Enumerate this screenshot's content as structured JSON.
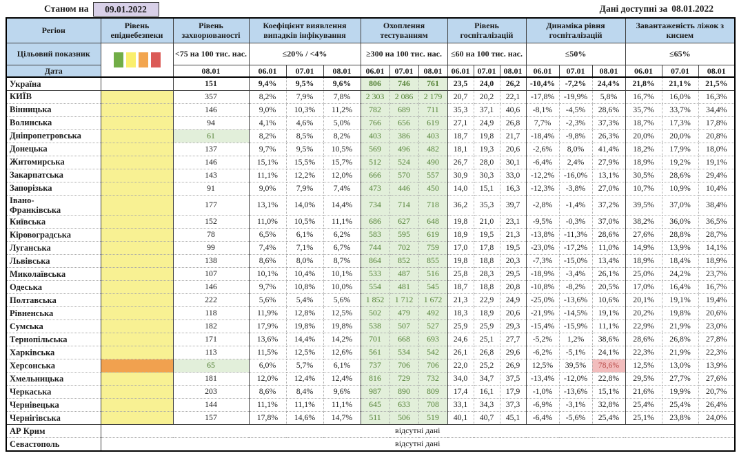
{
  "meta": {
    "as_of_label": "Станом на",
    "as_of_date": "09.01.2022",
    "available_label": "Дані доступні за",
    "available_date": "08.01.2022"
  },
  "header": {
    "region_label": "Регіон",
    "target_label": "Цільовий показник",
    "date_label": "Дата",
    "swatch_colors": [
      "#71AD47",
      "#FAEF6D",
      "#F2A54F",
      "#DB5B57"
    ],
    "groups": [
      {
        "title": "Рівень епіднебезпеки",
        "target": "",
        "dates": []
      },
      {
        "title": "Рівень захворюваності",
        "target": "<75 на 100 тис. нас.",
        "dates": [
          "08.01"
        ]
      },
      {
        "title": "Коефіцієнт виявлення випадків інфікування",
        "target": "≤20% / <4%",
        "dates": [
          "06.01",
          "07.01",
          "08.01"
        ]
      },
      {
        "title": "Охоплення тестуванням",
        "target": "≥300 на 100 тис. нас.",
        "dates": [
          "06.01",
          "07.01",
          "08.01"
        ]
      },
      {
        "title": "Рівень госпіталізацій",
        "target": "≤60 на 100 тис. нас.",
        "dates": [
          "06.01",
          "07.01",
          "08.01"
        ]
      },
      {
        "title": "Динаміка рівня госпіталізацій",
        "target": "≤50%",
        "dates": [
          "06.01",
          "07.01",
          "08.01"
        ]
      },
      {
        "title": "Завантаженість ліжок з киснем",
        "target": "≤65%",
        "dates": [
          "06.01",
          "07.01",
          "08.01"
        ]
      }
    ]
  },
  "no_data_text": "відсутні дані",
  "colors": {
    "header_blue": "#BDD7EE",
    "lavender": "#D8D0E8",
    "danger_yellow": "#F8F193",
    "danger_orange": "#F1A14F",
    "ok_green_bg": "#E2EFDA",
    "ok_green_text": "#538135",
    "alert_red_bg": "#F2BDBD",
    "alert_red_text": "#B94A48"
  },
  "rows": [
    {
      "region": "Україна",
      "bold": true,
      "rule_below": true,
      "danger": "none",
      "incidence": "151",
      "detection": [
        "9,4%",
        "9,5%",
        "9,6%"
      ],
      "testing": [
        "806",
        "746",
        "761"
      ],
      "hospital": [
        "23,5",
        "24,0",
        "26,2"
      ],
      "dynamics": [
        "-10,4%",
        "-7,2%",
        "24,4%"
      ],
      "beds": [
        "21,8%",
        "21,1%",
        "21,5%"
      ]
    },
    {
      "region": "КИЇВ",
      "danger": "yellow",
      "incidence": "357",
      "detection": [
        "8,2%",
        "7,9%",
        "7,8%"
      ],
      "testing": [
        "2 303",
        "2 086",
        "2 179"
      ],
      "hospital": [
        "20,7",
        "20,2",
        "22,1"
      ],
      "dynamics": [
        "-17,8%",
        "-19,9%",
        "5,8%"
      ],
      "beds": [
        "16,7%",
        "16,0%",
        "16,3%"
      ]
    },
    {
      "region": "Вінницька",
      "danger": "yellow",
      "incidence": "146",
      "detection": [
        "9,0%",
        "10,3%",
        "11,2%"
      ],
      "testing": [
        "782",
        "689",
        "711"
      ],
      "hospital": [
        "35,3",
        "37,1",
        "40,6"
      ],
      "dynamics": [
        "-8,1%",
        "-4,5%",
        "28,6%"
      ],
      "beds": [
        "35,7%",
        "33,7%",
        "34,4%"
      ]
    },
    {
      "region": "Волинська",
      "danger": "yellow",
      "incidence": "94",
      "detection": [
        "4,1%",
        "4,6%",
        "5,0%"
      ],
      "testing": [
        "766",
        "656",
        "619"
      ],
      "hospital": [
        "27,1",
        "24,9",
        "26,8"
      ],
      "dynamics": [
        "7,7%",
        "-2,3%",
        "37,3%"
      ],
      "beds": [
        "18,7%",
        "17,3%",
        "17,8%"
      ]
    },
    {
      "region": "Дніпропетровська",
      "danger": "yellow",
      "incidence": "61",
      "incidence_green": true,
      "detection": [
        "8,2%",
        "8,5%",
        "8,2%"
      ],
      "testing": [
        "403",
        "386",
        "403"
      ],
      "hospital": [
        "18,7",
        "19,8",
        "21,7"
      ],
      "dynamics": [
        "-18,4%",
        "-9,8%",
        "26,3%"
      ],
      "beds": [
        "20,0%",
        "20,0%",
        "20,8%"
      ]
    },
    {
      "region": "Донецька",
      "danger": "yellow",
      "incidence": "137",
      "detection": [
        "9,7%",
        "9,5%",
        "10,5%"
      ],
      "testing": [
        "569",
        "496",
        "482"
      ],
      "hospital": [
        "18,1",
        "19,3",
        "20,6"
      ],
      "dynamics": [
        "-2,6%",
        "8,0%",
        "41,4%"
      ],
      "beds": [
        "18,2%",
        "17,9%",
        "18,0%"
      ]
    },
    {
      "region": "Житомирська",
      "danger": "yellow",
      "incidence": "146",
      "detection": [
        "15,1%",
        "15,5%",
        "15,7%"
      ],
      "testing": [
        "512",
        "524",
        "490"
      ],
      "hospital": [
        "26,7",
        "28,0",
        "30,1"
      ],
      "dynamics": [
        "-6,4%",
        "2,4%",
        "27,9%"
      ],
      "beds": [
        "18,9%",
        "19,2%",
        "19,1%"
      ]
    },
    {
      "region": "Закарпатська",
      "danger": "yellow",
      "incidence": "143",
      "detection": [
        "11,1%",
        "12,2%",
        "12,0%"
      ],
      "testing": [
        "666",
        "570",
        "557"
      ],
      "hospital": [
        "30,9",
        "30,3",
        "33,0"
      ],
      "dynamics": [
        "-12,2%",
        "-16,0%",
        "13,1%"
      ],
      "beds": [
        "30,5%",
        "28,6%",
        "29,4%"
      ]
    },
    {
      "region": "Запорізька",
      "danger": "yellow",
      "incidence": "91",
      "detection": [
        "9,0%",
        "7,9%",
        "7,4%"
      ],
      "testing": [
        "473",
        "446",
        "450"
      ],
      "hospital": [
        "14,0",
        "15,1",
        "16,3"
      ],
      "dynamics": [
        "-12,3%",
        "-3,8%",
        "27,0%"
      ],
      "beds": [
        "10,7%",
        "10,9%",
        "10,4%"
      ]
    },
    {
      "region": "Івано-\nФранківська",
      "danger": "yellow",
      "incidence": "177",
      "detection": [
        "13,1%",
        "14,0%",
        "14,4%"
      ],
      "testing": [
        "734",
        "714",
        "718"
      ],
      "hospital": [
        "36,2",
        "35,3",
        "39,7"
      ],
      "dynamics": [
        "-2,8%",
        "-1,4%",
        "37,2%"
      ],
      "beds": [
        "39,5%",
        "37,0%",
        "38,4%"
      ]
    },
    {
      "region": "Київська",
      "danger": "yellow",
      "incidence": "152",
      "detection": [
        "11,0%",
        "10,5%",
        "11,1%"
      ],
      "testing": [
        "686",
        "627",
        "648"
      ],
      "hospital": [
        "19,8",
        "21,0",
        "23,1"
      ],
      "dynamics": [
        "-9,5%",
        "-0,3%",
        "37,0%"
      ],
      "beds": [
        "38,2%",
        "36,0%",
        "36,5%"
      ]
    },
    {
      "region": "Кіровоградська",
      "danger": "yellow",
      "incidence": "78",
      "detection": [
        "6,5%",
        "6,1%",
        "6,2%"
      ],
      "testing": [
        "583",
        "595",
        "619"
      ],
      "hospital": [
        "18,9",
        "19,5",
        "21,3"
      ],
      "dynamics": [
        "-13,8%",
        "-11,3%",
        "28,6%"
      ],
      "beds": [
        "27,6%",
        "28,8%",
        "28,7%"
      ]
    },
    {
      "region": "Луганська",
      "danger": "yellow",
      "incidence": "99",
      "detection": [
        "7,4%",
        "7,1%",
        "6,7%"
      ],
      "testing": [
        "744",
        "702",
        "759"
      ],
      "hospital": [
        "17,0",
        "17,8",
        "19,5"
      ],
      "dynamics": [
        "-23,0%",
        "-17,2%",
        "11,0%"
      ],
      "beds": [
        "14,9%",
        "13,9%",
        "14,1%"
      ]
    },
    {
      "region": "Львівська",
      "danger": "yellow",
      "incidence": "138",
      "detection": [
        "8,6%",
        "8,0%",
        "8,7%"
      ],
      "testing": [
        "864",
        "852",
        "855"
      ],
      "hospital": [
        "19,8",
        "18,8",
        "20,3"
      ],
      "dynamics": [
        "-7,3%",
        "-15,0%",
        "13,4%"
      ],
      "beds": [
        "18,9%",
        "18,4%",
        "18,9%"
      ]
    },
    {
      "region": "Миколаївська",
      "danger": "yellow",
      "incidence": "107",
      "detection": [
        "10,1%",
        "10,4%",
        "10,1%"
      ],
      "testing": [
        "533",
        "487",
        "516"
      ],
      "hospital": [
        "25,8",
        "28,3",
        "29,5"
      ],
      "dynamics": [
        "-18,9%",
        "-3,4%",
        "26,1%"
      ],
      "beds": [
        "25,0%",
        "24,2%",
        "23,7%"
      ]
    },
    {
      "region": "Одеська",
      "danger": "yellow",
      "incidence": "146",
      "detection": [
        "9,7%",
        "10,8%",
        "10,0%"
      ],
      "testing": [
        "554",
        "481",
        "545"
      ],
      "hospital": [
        "18,7",
        "18,8",
        "20,8"
      ],
      "dynamics": [
        "-10,8%",
        "-8,2%",
        "20,5%"
      ],
      "beds": [
        "17,0%",
        "16,4%",
        "16,7%"
      ]
    },
    {
      "region": "Полтавська",
      "danger": "yellow",
      "incidence": "222",
      "detection": [
        "5,6%",
        "5,4%",
        "5,6%"
      ],
      "testing": [
        "1 852",
        "1 712",
        "1 672"
      ],
      "hospital": [
        "21,3",
        "22,9",
        "24,9"
      ],
      "dynamics": [
        "-25,0%",
        "-13,6%",
        "10,6%"
      ],
      "beds": [
        "20,1%",
        "19,1%",
        "19,4%"
      ]
    },
    {
      "region": "Рівненська",
      "danger": "yellow",
      "incidence": "118",
      "detection": [
        "11,9%",
        "12,8%",
        "12,5%"
      ],
      "testing": [
        "502",
        "479",
        "492"
      ],
      "hospital": [
        "18,3",
        "18,9",
        "20,6"
      ],
      "dynamics": [
        "-21,9%",
        "-14,5%",
        "19,1%"
      ],
      "beds": [
        "20,2%",
        "19,8%",
        "20,6%"
      ]
    },
    {
      "region": "Сумська",
      "danger": "yellow",
      "incidence": "182",
      "detection": [
        "17,9%",
        "19,8%",
        "19,8%"
      ],
      "testing": [
        "538",
        "507",
        "527"
      ],
      "hospital": [
        "25,9",
        "25,9",
        "29,3"
      ],
      "dynamics": [
        "-15,4%",
        "-15,9%",
        "11,1%"
      ],
      "beds": [
        "22,9%",
        "21,9%",
        "23,0%"
      ]
    },
    {
      "region": "Тернопільська",
      "danger": "yellow",
      "incidence": "171",
      "detection": [
        "13,6%",
        "14,4%",
        "14,2%"
      ],
      "testing": [
        "701",
        "668",
        "693"
      ],
      "hospital": [
        "24,6",
        "25,1",
        "27,7"
      ],
      "dynamics": [
        "-5,2%",
        "1,2%",
        "38,6%"
      ],
      "beds": [
        "28,6%",
        "26,8%",
        "27,8%"
      ]
    },
    {
      "region": "Харківська",
      "danger": "yellow",
      "incidence": "113",
      "detection": [
        "11,5%",
        "12,5%",
        "12,6%"
      ],
      "testing": [
        "561",
        "534",
        "542"
      ],
      "hospital": [
        "26,1",
        "26,8",
        "29,6"
      ],
      "dynamics": [
        "-6,2%",
        "-5,1%",
        "24,1%"
      ],
      "beds": [
        "22,3%",
        "21,9%",
        "22,3%"
      ]
    },
    {
      "region": "Херсонська",
      "danger": "orange",
      "incidence": "65",
      "incidence_green": true,
      "dyn_red": 2,
      "detection": [
        "6,0%",
        "5,7%",
        "6,1%"
      ],
      "testing": [
        "737",
        "706",
        "706"
      ],
      "hospital": [
        "22,0",
        "25,2",
        "26,9"
      ],
      "dynamics": [
        "12,5%",
        "39,5%",
        "78,6%"
      ],
      "beds": [
        "12,5%",
        "13,0%",
        "13,9%"
      ]
    },
    {
      "region": "Хмельницька",
      "danger": "yellow",
      "incidence": "181",
      "detection": [
        "12,0%",
        "12,4%",
        "12,4%"
      ],
      "testing": [
        "816",
        "729",
        "732"
      ],
      "hospital": [
        "34,0",
        "34,7",
        "37,5"
      ],
      "dynamics": [
        "-13,4%",
        "-12,0%",
        "22,8%"
      ],
      "beds": [
        "29,5%",
        "27,7%",
        "27,6%"
      ]
    },
    {
      "region": "Черкаська",
      "danger": "yellow",
      "incidence": "203",
      "detection": [
        "8,6%",
        "8,4%",
        "9,6%"
      ],
      "testing": [
        "987",
        "890",
        "809"
      ],
      "hospital": [
        "17,4",
        "16,1",
        "17,9"
      ],
      "dynamics": [
        "-1,0%",
        "-13,6%",
        "15,1%"
      ],
      "beds": [
        "21,6%",
        "19,9%",
        "20,7%"
      ]
    },
    {
      "region": "Чернівецька",
      "danger": "yellow",
      "incidence": "144",
      "detection": [
        "11,1%",
        "11,1%",
        "11,1%"
      ],
      "testing": [
        "645",
        "633",
        "708"
      ],
      "hospital": [
        "33,1",
        "34,3",
        "37,3"
      ],
      "dynamics": [
        "-6,9%",
        "-3,1%",
        "32,8%"
      ],
      "beds": [
        "25,4%",
        "25,4%",
        "26,4%"
      ]
    },
    {
      "region": "Чернігівська",
      "rule_below": true,
      "danger": "yellow",
      "incidence": "157",
      "detection": [
        "17,8%",
        "14,6%",
        "14,7%"
      ],
      "testing": [
        "511",
        "506",
        "519"
      ],
      "hospital": [
        "40,1",
        "40,7",
        "45,1"
      ],
      "dynamics": [
        "-6,4%",
        "-5,6%",
        "25,4%"
      ],
      "beds": [
        "25,1%",
        "23,8%",
        "24,0%"
      ]
    },
    {
      "region": "АР Крим",
      "no_data": true
    },
    {
      "region": "Севастополь",
      "no_data": true
    }
  ]
}
